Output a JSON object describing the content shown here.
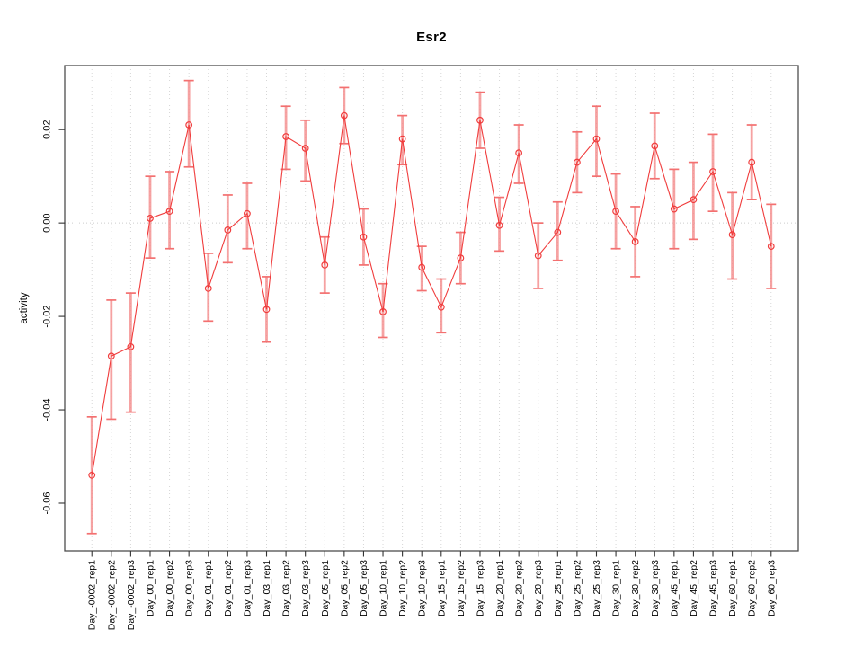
{
  "chart_data": {
    "type": "line",
    "title": "Esr2",
    "ylabel": "activity",
    "xlabel": "",
    "legend": "none",
    "grid": "vertical-dotted-per-category, dotted-zero-line",
    "marker": "open-circle",
    "error_bars": true,
    "ylim": [
      -0.0702,
      0.0337
    ],
    "ytick_values": [
      0.02,
      0.0,
      -0.02,
      -0.04,
      -0.06
    ],
    "ytick_labels": [
      "0.02",
      "0.00",
      "-0.02",
      "-0.04",
      "-0.06"
    ],
    "categories": [
      "Day_-0002_rep1",
      "Day_-0002_rep2",
      "Day_-0002_rep3",
      "Day_00_rep1",
      "Day_00_rep2",
      "Day_00_rep3",
      "Day_01_rep1",
      "Day_01_rep2",
      "Day_01_rep3",
      "Day_03_rep1",
      "Day_03_rep2",
      "Day_03_rep3",
      "Day_05_rep1",
      "Day_05_rep2",
      "Day_05_rep3",
      "Day_10_rep1",
      "Day_10_rep2",
      "Day_10_rep3",
      "Day_15_rep1",
      "Day_15_rep2",
      "Day_15_rep3",
      "Day_20_rep1",
      "Day_20_rep2",
      "Day_20_rep3",
      "Day_25_rep1",
      "Day_25_rep2",
      "Day_25_rep3",
      "Day_30_rep1",
      "Day_30_rep2",
      "Day_30_rep3",
      "Day_45_rep1",
      "Day_45_rep2",
      "Day_45_rep3",
      "Day_60_rep1",
      "Day_60_rep2",
      "Day_60_rep3"
    ],
    "values": [
      -0.054,
      -0.0285,
      -0.0265,
      0.001,
      0.0025,
      0.021,
      -0.014,
      -0.0015,
      0.002,
      -0.0185,
      0.0185,
      0.016,
      -0.009,
      0.023,
      -0.003,
      -0.019,
      0.018,
      -0.0095,
      -0.018,
      -0.0075,
      0.022,
      -0.0005,
      0.015,
      -0.007,
      -0.002,
      0.013,
      0.018,
      0.0025,
      -0.004,
      0.0165,
      0.003,
      0.005,
      0.011,
      -0.0025,
      0.013,
      -0.005
    ],
    "err_low": [
      -0.0665,
      -0.042,
      -0.0405,
      -0.0075,
      -0.0055,
      0.012,
      -0.021,
      -0.0085,
      -0.0055,
      -0.0255,
      0.0115,
      0.009,
      -0.015,
      0.017,
      -0.009,
      -0.0245,
      0.0125,
      -0.0145,
      -0.0235,
      -0.013,
      0.016,
      -0.006,
      0.0085,
      -0.014,
      -0.008,
      0.0065,
      0.01,
      -0.0055,
      -0.0115,
      0.0095,
      -0.0055,
      -0.0035,
      0.0025,
      -0.012,
      0.005,
      -0.014
    ],
    "err_high": [
      -0.0415,
      -0.0165,
      -0.015,
      0.01,
      0.011,
      0.0305,
      -0.0065,
      0.006,
      0.0085,
      -0.0115,
      0.025,
      0.022,
      -0.003,
      0.029,
      0.003,
      -0.013,
      0.023,
      -0.005,
      -0.012,
      -0.002,
      0.028,
      0.0055,
      0.021,
      0.0,
      0.0045,
      0.0195,
      0.025,
      0.0105,
      0.0035,
      0.0235,
      0.0115,
      0.013,
      0.019,
      0.0065,
      0.021,
      0.004
    ],
    "colors": {
      "series_line": "#f03c3c",
      "marker_stroke": "#f03c3c",
      "error_band": "#f58c8c",
      "error_cap": "#f37070",
      "grid": "#d6d6d6",
      "zero_line": "#cccccc",
      "axis": "#333333",
      "frame": "#4d4d4d"
    }
  }
}
